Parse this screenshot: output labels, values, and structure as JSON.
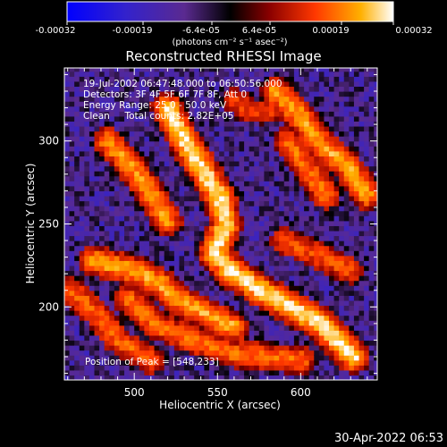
{
  "colorbar": {
    "tick_labels": [
      "-0.00032",
      "-0.00019",
      "-6.4e-05",
      "6.4e-05",
      "0.00019",
      "0.00032"
    ],
    "min": -0.00032,
    "max": 0.00032,
    "units_label": "(photons cm⁻² s⁻¹ asec⁻²)"
  },
  "chart_data": {
    "type": "heatmap",
    "title": "Reconstructed RHESSI Image",
    "xlabel": "Heliocentric X (arcsec)",
    "ylabel": "Heliocentric Y (arcsec)",
    "xlim": [
      458,
      646
    ],
    "ylim": [
      156,
      344
    ],
    "xticks": [
      500,
      550,
      600
    ],
    "yticks": [
      200,
      250,
      300
    ],
    "grid": false,
    "info_lines": [
      "19-Jul-2002 06:47:48.000 to 06:50:56.000",
      "Detectors: 3F 4F 5F 6F 7F 8F, Att 0",
      "Energy Range: 25.0 - 50.0 keV",
      "Clean     Total counts: 2.82E+05"
    ],
    "peak_label": "Position of Peak = [548,233]",
    "peak": [
      548,
      233
    ],
    "ridges": [
      {
        "points": [
          [
            520,
            320
          ],
          [
            530,
            300
          ],
          [
            540,
            285
          ],
          [
            552,
            265
          ],
          [
            555,
            250
          ],
          [
            548,
            233
          ],
          [
            560,
            220
          ],
          [
            585,
            205
          ],
          [
            612,
            190
          ],
          [
            632,
            170
          ]
        ],
        "level": 0.95
      },
      {
        "points": [
          [
            484,
            300
          ],
          [
            498,
            285
          ],
          [
            510,
            268
          ],
          [
            520,
            252
          ]
        ],
        "level": 0.7
      },
      {
        "points": [
          [
            476,
            228
          ],
          [
            500,
            222
          ],
          [
            515,
            215
          ],
          [
            525,
            205
          ],
          [
            540,
            198
          ],
          [
            560,
            188
          ]
        ],
        "level": 0.75
      },
      {
        "points": [
          [
            585,
            330
          ],
          [
            600,
            315
          ],
          [
            612,
            298
          ],
          [
            628,
            285
          ],
          [
            640,
            268
          ]
        ],
        "level": 0.75
      },
      {
        "points": [
          [
            592,
            300
          ],
          [
            605,
            282
          ],
          [
            615,
            268
          ]
        ],
        "level": 0.6
      },
      {
        "points": [
          [
            496,
            205
          ],
          [
            512,
            190
          ],
          [
            530,
            182
          ],
          [
            560,
            172
          ],
          [
            600,
            168
          ]
        ],
        "level": 0.6
      },
      {
        "points": [
          [
            462,
            210
          ],
          [
            478,
            196
          ],
          [
            490,
            180
          ],
          [
            510,
            168
          ]
        ],
        "level": 0.55
      },
      {
        "points": [
          [
            560,
            325
          ],
          [
            570,
            318
          ],
          [
            580,
            318
          ]
        ],
        "level": 0.45
      },
      {
        "points": [
          [
            590,
            240
          ],
          [
            610,
            232
          ],
          [
            630,
            222
          ]
        ],
        "level": 0.5
      }
    ]
  },
  "footer": {
    "timestamp": "30-Apr-2022 06:53"
  }
}
